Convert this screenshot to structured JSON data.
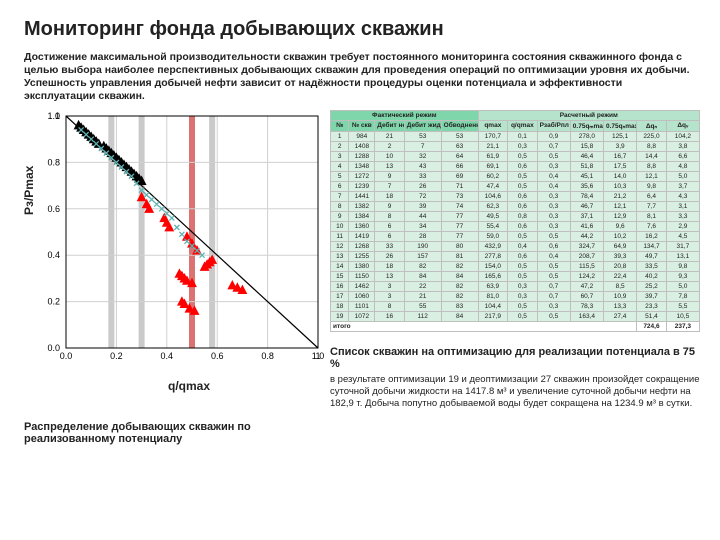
{
  "title": "Мониторинг фонда добывающих скважин",
  "description": "Достижение максимальной производительности скважин требует постоянного мониторинга состояния скважинного фонда с целью выбора наиболее перспективных добывающих скважин для проведения операций по оптимизации уровня их добычи. Успешность управления добычей нефти зависит от надёжности процедуры оценки потенциала и эффективности эксплуатации скважин.",
  "chart": {
    "type": "scatter",
    "xlabel": "q/qmax",
    "ylabel": "Pз/Pmax",
    "xlim": [
      0,
      1
    ],
    "ylim": [
      0,
      1
    ],
    "xtick_step": 0.2,
    "ytick_step": 0.2,
    "background_color": "#ffffff",
    "grid_color": "#d0d0d0",
    "axis_color": "#000000",
    "diag_line": {
      "x1": 0,
      "y1": 1,
      "x2": 1,
      "y2": 0,
      "color": "#000000",
      "width": 1.2
    },
    "series": {
      "red": {
        "color": "#ff0000",
        "marker": "triangle",
        "size": 9,
        "points": [
          [
            0.55,
            0.35
          ],
          [
            0.56,
            0.36
          ],
          [
            0.57,
            0.37
          ],
          [
            0.58,
            0.38
          ],
          [
            0.52,
            0.42
          ],
          [
            0.5,
            0.45
          ],
          [
            0.48,
            0.48
          ],
          [
            0.45,
            0.32
          ],
          [
            0.46,
            0.31
          ],
          [
            0.47,
            0.3
          ],
          [
            0.48,
            0.29
          ],
          [
            0.5,
            0.28
          ],
          [
            0.46,
            0.2
          ],
          [
            0.47,
            0.19
          ],
          [
            0.49,
            0.17
          ],
          [
            0.51,
            0.16
          ],
          [
            0.66,
            0.27
          ],
          [
            0.68,
            0.26
          ],
          [
            0.7,
            0.25
          ],
          [
            0.41,
            0.52
          ],
          [
            0.4,
            0.54
          ],
          [
            0.39,
            0.56
          ],
          [
            0.33,
            0.6
          ],
          [
            0.32,
            0.62
          ],
          [
            0.3,
            0.65
          ]
        ]
      },
      "black": {
        "color": "#000000",
        "marker": "triangle",
        "size": 9,
        "points": [
          [
            0.05,
            0.96
          ],
          [
            0.06,
            0.95
          ],
          [
            0.07,
            0.94
          ],
          [
            0.08,
            0.93
          ],
          [
            0.09,
            0.92
          ],
          [
            0.1,
            0.91
          ],
          [
            0.11,
            0.9
          ],
          [
            0.12,
            0.89
          ],
          [
            0.13,
            0.88
          ],
          [
            0.15,
            0.87
          ],
          [
            0.16,
            0.86
          ],
          [
            0.17,
            0.85
          ],
          [
            0.18,
            0.84
          ],
          [
            0.19,
            0.83
          ],
          [
            0.2,
            0.82
          ],
          [
            0.21,
            0.81
          ],
          [
            0.22,
            0.8
          ],
          [
            0.23,
            0.79
          ],
          [
            0.24,
            0.78
          ],
          [
            0.25,
            0.77
          ],
          [
            0.26,
            0.76
          ],
          [
            0.27,
            0.75
          ],
          [
            0.28,
            0.74
          ],
          [
            0.29,
            0.73
          ],
          [
            0.3,
            0.72
          ]
        ]
      },
      "cyan": {
        "color": "#5fb4b4",
        "marker": "x",
        "size": 5,
        "points": [
          [
            0.06,
            0.94
          ],
          [
            0.08,
            0.92
          ],
          [
            0.1,
            0.9
          ],
          [
            0.12,
            0.88
          ],
          [
            0.14,
            0.86
          ],
          [
            0.16,
            0.84
          ],
          [
            0.18,
            0.82
          ],
          [
            0.2,
            0.8
          ],
          [
            0.22,
            0.78
          ],
          [
            0.24,
            0.76
          ],
          [
            0.26,
            0.74
          ],
          [
            0.28,
            0.71
          ],
          [
            0.3,
            0.68
          ],
          [
            0.32,
            0.66
          ],
          [
            0.34,
            0.64
          ],
          [
            0.36,
            0.62
          ],
          [
            0.38,
            0.6
          ],
          [
            0.4,
            0.58
          ],
          [
            0.42,
            0.56
          ],
          [
            0.44,
            0.52
          ],
          [
            0.46,
            0.49
          ],
          [
            0.48,
            0.46
          ],
          [
            0.5,
            0.44
          ],
          [
            0.52,
            0.42
          ],
          [
            0.54,
            0.4
          ]
        ]
      }
    },
    "vbars": [
      {
        "x": 0.18,
        "color": "#9e9e9e",
        "width": 6
      },
      {
        "x": 0.3,
        "color": "#9e9e9e",
        "width": 6
      },
      {
        "x": 0.5,
        "color": "#c00000",
        "width": 6
      },
      {
        "x": 0.58,
        "color": "#9e9e9e",
        "width": 6
      }
    ],
    "caption": "Распределение добывающих скважин по реализованному потенциалу"
  },
  "table": {
    "group1_label": "Фактический режим",
    "group2_label": "Расчетный режим",
    "columns_g1": [
      "№",
      "№ скв",
      "Дебит нефти, т/сут",
      "Дебит жидкости, м3/сут",
      "Обводненность, %"
    ],
    "columns_g2": [
      "qmax",
      "q/qmax",
      "Pзаб/Рпл",
      "0.75qₘmax",
      "0.75qₙmax",
      "Δqₙ",
      "Δqᵥ"
    ],
    "rows": [
      [
        "1",
        "984",
        "21",
        "53",
        "53",
        "170,7",
        "0,1",
        "0,9",
        "278,0",
        "125,1",
        "225,0",
        "104,2"
      ],
      [
        "2",
        "1408",
        "2",
        "7",
        "63",
        "21,1",
        "0,3",
        "0,7",
        "15,8",
        "3,9",
        "8,8",
        "3,8"
      ],
      [
        "3",
        "1288",
        "10",
        "32",
        "64",
        "61,9",
        "0,5",
        "0,5",
        "46,4",
        "16,7",
        "14,4",
        "6,6"
      ],
      [
        "4",
        "1348",
        "13",
        "43",
        "66",
        "69,1",
        "0,6",
        "0,3",
        "51,8",
        "17,5",
        "8,8",
        "4,8"
      ],
      [
        "5",
        "1272",
        "9",
        "33",
        "69",
        "60,2",
        "0,5",
        "0,4",
        "45,1",
        "14,0",
        "12,1",
        "5,0"
      ],
      [
        "6",
        "1239",
        "7",
        "26",
        "71",
        "47,4",
        "0,5",
        "0,4",
        "35,6",
        "10,3",
        "9,8",
        "3,7"
      ],
      [
        "7",
        "1441",
        "18",
        "72",
        "73",
        "104,6",
        "0,6",
        "0,3",
        "78,4",
        "21,2",
        "6,4",
        "4,3"
      ],
      [
        "8",
        "1382",
        "9",
        "39",
        "74",
        "62,3",
        "0,6",
        "0,3",
        "46,7",
        "12,1",
        "7,7",
        "3,1"
      ],
      [
        "9",
        "1384",
        "8",
        "44",
        "77",
        "49,5",
        "0,8",
        "0,3",
        "37,1",
        "12,9",
        "8,1",
        "3,3"
      ],
      [
        "10",
        "1360",
        "6",
        "34",
        "77",
        "55,4",
        "0,6",
        "0,3",
        "41,6",
        "9,6",
        "7,6",
        "2,9"
      ],
      [
        "11",
        "1419",
        "6",
        "28",
        "77",
        "59,0",
        "0,5",
        "0,5",
        "44,2",
        "10,2",
        "16,2",
        "4,5"
      ],
      [
        "12",
        "1268",
        "33",
        "190",
        "80",
        "432,9",
        "0,4",
        "0,6",
        "324,7",
        "64,9",
        "134,7",
        "31,7"
      ],
      [
        "13",
        "1255",
        "26",
        "157",
        "81",
        "277,8",
        "0,6",
        "0,4",
        "208,7",
        "39,3",
        "49,7",
        "13,1"
      ],
      [
        "14",
        "1380",
        "18",
        "82",
        "82",
        "154,0",
        "0,5",
        "0,5",
        "115,5",
        "20,8",
        "33,5",
        "9,8"
      ],
      [
        "15",
        "1150",
        "13",
        "84",
        "84",
        "165,6",
        "0,5",
        "0,5",
        "124,2",
        "22,4",
        "40,2",
        "9,3"
      ],
      [
        "16",
        "1462",
        "3",
        "22",
        "82",
        "63,9",
        "0,3",
        "0,7",
        "47,2",
        "8,5",
        "25,2",
        "5,0"
      ],
      [
        "17",
        "1060",
        "3",
        "21",
        "82",
        "81,0",
        "0,3",
        "0,7",
        "60,7",
        "10,9",
        "39,7",
        "7,8"
      ],
      [
        "18",
        "1101",
        "8",
        "55",
        "83",
        "104,4",
        "0,5",
        "0,3",
        "78,3",
        "13,3",
        "23,3",
        "5,5"
      ],
      [
        "19",
        "1072",
        "16",
        "112",
        "84",
        "217,9",
        "0,5",
        "0,5",
        "163,4",
        "27,4",
        "51,4",
        "10,5"
      ]
    ],
    "total_label": "итого",
    "col_widths_pct": [
      5,
      7,
      8,
      10,
      10,
      8,
      8,
      9,
      9,
      9,
      8,
      9
    ]
  },
  "result": {
    "title": "Список скважин на оптимизацию для реализации потенциала в 75 %",
    "body": "в результате оптимизации 19 и деоптимизации 27 скважин произойдет сокращение суточной добычи жидкости на 1417.8 м³ и увеличение суточной добычи нефти на 182,9 т. Добыча попутно добываемой воды будет сокращена на 1234.9 м³ в сутки.",
    "total_row": [
      "",
      "",
      "",
      "",
      "",
      "",
      "",
      "",
      "",
      "",
      "724,6",
      "237,3"
    ]
  }
}
